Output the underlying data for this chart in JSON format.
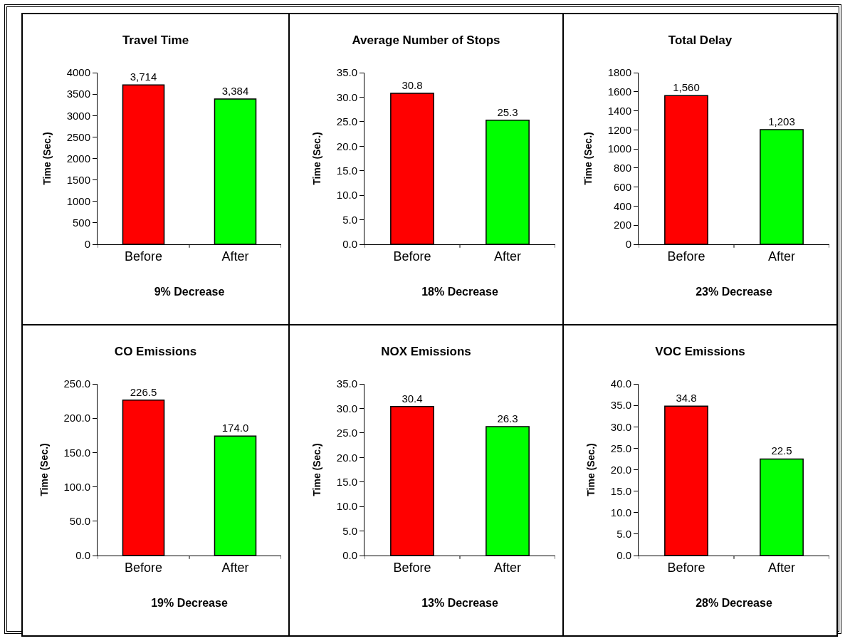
{
  "chart_data": [
    {
      "type": "bar",
      "title": "Travel Time",
      "xlabel": "9% Decrease",
      "ylabel": "Time (Sec.)",
      "categories": [
        "Before",
        "After"
      ],
      "values": [
        3714,
        3384
      ],
      "colors": [
        "#ff0000",
        "#00ff00"
      ],
      "value_labels": [
        "3,714",
        "3,384"
      ],
      "ylim": [
        0,
        4000
      ],
      "yticks": [
        0,
        500,
        1000,
        1500,
        2000,
        2500,
        3000,
        3500,
        4000
      ]
    },
    {
      "type": "bar",
      "title": "Average Number of Stops",
      "xlabel": "18% Decrease",
      "ylabel": "Time (Sec.)",
      "categories": [
        "Before",
        "After"
      ],
      "values": [
        30.8,
        25.3
      ],
      "colors": [
        "#ff0000",
        "#00ff00"
      ],
      "value_labels": [
        "30.8",
        "25.3"
      ],
      "ylim": [
        0,
        35
      ],
      "yticks": [
        {
          "value": 0,
          "label": "0.0"
        },
        {
          "value": 5,
          "label": "5.0"
        },
        {
          "value": 10,
          "label": "10.0"
        },
        {
          "value": 15,
          "label": "15.0"
        },
        {
          "value": 20,
          "label": "20.0"
        },
        {
          "value": 25,
          "label": "25.0"
        },
        {
          "value": 30,
          "label": "30.0"
        },
        {
          "value": 35,
          "label": "35.0"
        }
      ]
    },
    {
      "type": "bar",
      "title": "Total Delay",
      "xlabel": "23% Decrease",
      "ylabel": "Time (Sec.)",
      "categories": [
        "Before",
        "After"
      ],
      "values": [
        1560,
        1203
      ],
      "colors": [
        "#ff0000",
        "#00ff00"
      ],
      "value_labels": [
        "1,560",
        "1,203"
      ],
      "ylim": [
        0,
        1800
      ],
      "yticks": [
        0,
        200,
        400,
        600,
        800,
        1000,
        1200,
        1400,
        1600,
        1800
      ]
    },
    {
      "type": "bar",
      "title": "CO Emissions",
      "xlabel": "19% Decrease",
      "ylabel": "Time (Sec.)",
      "categories": [
        "Before",
        "After"
      ],
      "values": [
        226.5,
        174.0
      ],
      "colors": [
        "#ff0000",
        "#00ff00"
      ],
      "value_labels": [
        "226.5",
        "174.0"
      ],
      "ylim": [
        0,
        250
      ],
      "yticks": [
        {
          "value": 0,
          "label": "0.0"
        },
        {
          "value": 50,
          "label": "50.0"
        },
        {
          "value": 100,
          "label": "100.0"
        },
        {
          "value": 150,
          "label": "150.0"
        },
        {
          "value": 200,
          "label": "200.0"
        },
        {
          "value": 250,
          "label": "250.0"
        }
      ]
    },
    {
      "type": "bar",
      "title": "NOX Emissions",
      "xlabel": "13% Decrease",
      "ylabel": "Time (Sec.)",
      "categories": [
        "Before",
        "After"
      ],
      "values": [
        30.4,
        26.3
      ],
      "colors": [
        "#ff0000",
        "#00ff00"
      ],
      "value_labels": [
        "30.4",
        "26.3"
      ],
      "ylim": [
        0,
        35
      ],
      "yticks": [
        {
          "value": 0,
          "label": "0.0"
        },
        {
          "value": 5,
          "label": "5.0"
        },
        {
          "value": 10,
          "label": "10.0"
        },
        {
          "value": 15,
          "label": "15.0"
        },
        {
          "value": 20,
          "label": "20.0"
        },
        {
          "value": 25,
          "label": "25.0"
        },
        {
          "value": 30,
          "label": "30.0"
        },
        {
          "value": 35,
          "label": "35.0"
        }
      ]
    },
    {
      "type": "bar",
      "title": "VOC Emissions",
      "xlabel": "28% Decrease",
      "ylabel": "Time (Sec.)",
      "categories": [
        "Before",
        "After"
      ],
      "values": [
        34.8,
        22.5
      ],
      "colors": [
        "#ff0000",
        "#00ff00"
      ],
      "value_labels": [
        "34.8",
        "22.5"
      ],
      "ylim": [
        0,
        40
      ],
      "yticks": [
        {
          "value": 0,
          "label": "0.0"
        },
        {
          "value": 5,
          "label": "5.0"
        },
        {
          "value": 10,
          "label": "10.0"
        },
        {
          "value": 15,
          "label": "15.0"
        },
        {
          "value": 20,
          "label": "20.0"
        },
        {
          "value": 25,
          "label": "25.0"
        },
        {
          "value": 30,
          "label": "30.0"
        },
        {
          "value": 35,
          "label": "35.0"
        },
        {
          "value": 40,
          "label": "40.0"
        }
      ]
    }
  ]
}
